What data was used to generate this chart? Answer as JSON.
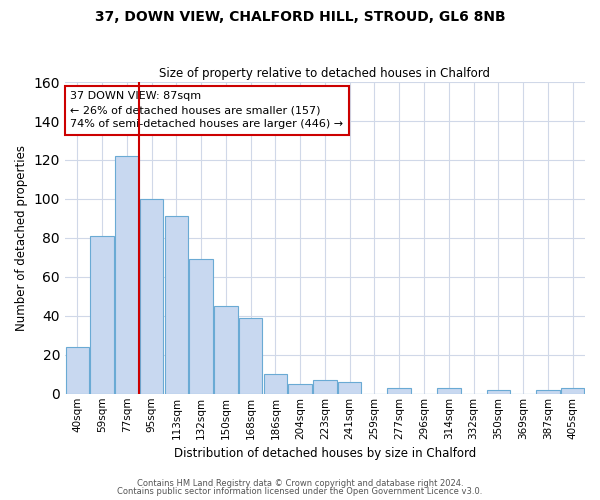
{
  "title": "37, DOWN VIEW, CHALFORD HILL, STROUD, GL6 8NB",
  "subtitle": "Size of property relative to detached houses in Chalford",
  "xlabel": "Distribution of detached houses by size in Chalford",
  "ylabel": "Number of detached properties",
  "bin_labels": [
    "40sqm",
    "59sqm",
    "77sqm",
    "95sqm",
    "113sqm",
    "132sqm",
    "150sqm",
    "168sqm",
    "186sqm",
    "204sqm",
    "223sqm",
    "241sqm",
    "259sqm",
    "277sqm",
    "296sqm",
    "314sqm",
    "332sqm",
    "350sqm",
    "369sqm",
    "387sqm",
    "405sqm"
  ],
  "bar_values": [
    24,
    81,
    122,
    100,
    91,
    69,
    45,
    39,
    10,
    5,
    7,
    6,
    0,
    3,
    0,
    3,
    0,
    2,
    0,
    2,
    3
  ],
  "bar_color": "#c8d8f0",
  "bar_edge_color": "#6aaad4",
  "vline_color": "#cc0000",
  "annotation_title": "37 DOWN VIEW: 87sqm",
  "annotation_line1": "← 26% of detached houses are smaller (157)",
  "annotation_line2": "74% of semi-detached houses are larger (446) →",
  "annotation_box_color": "#cc0000",
  "ylim": [
    0,
    160
  ],
  "yticks": [
    0,
    20,
    40,
    60,
    80,
    100,
    120,
    140,
    160
  ],
  "footer1": "Contains HM Land Registry data © Crown copyright and database right 2024.",
  "footer2": "Contains public sector information licensed under the Open Government Licence v3.0.",
  "bg_color": "#ffffff",
  "grid_color": "#d0d8e8"
}
